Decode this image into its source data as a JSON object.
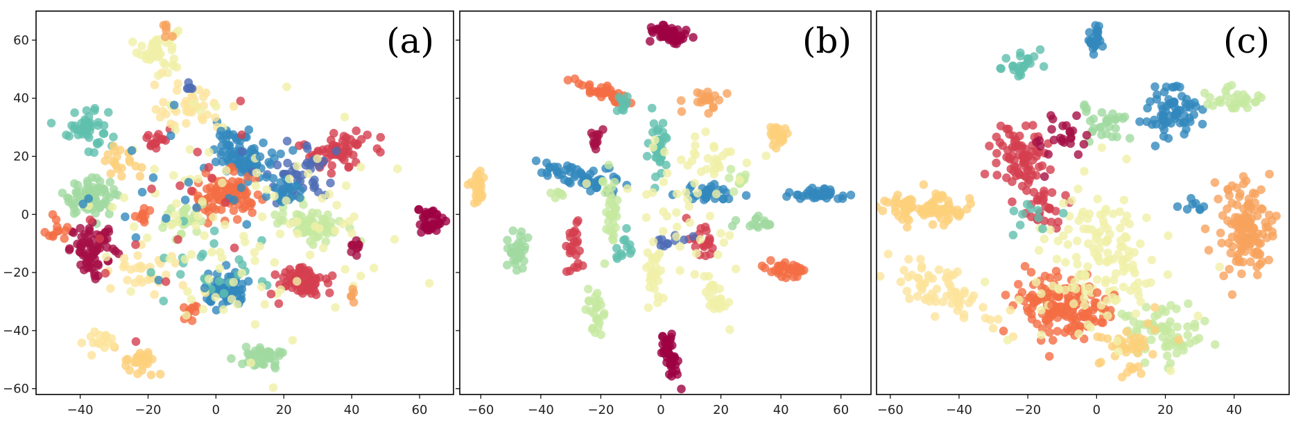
{
  "chart_data": [
    {
      "type": "scatter",
      "annotation": "(a)",
      "xlim": [
        -53,
        70
      ],
      "ylim": [
        -62,
        70
      ],
      "xticks": [
        -40,
        -20,
        0,
        20,
        40,
        60
      ],
      "yticks": [
        -60,
        -40,
        -20,
        0,
        20,
        40,
        60
      ],
      "show_yticklabels": true,
      "clusters": [
        {
          "c": "#f0f0a8",
          "x": -17,
          "y": 57,
          "sx": 3,
          "sy": 4,
          "n": 40
        },
        {
          "c": "#f7a35c",
          "x": -15,
          "y": 64,
          "sx": 1.5,
          "sy": 1,
          "n": 6
        },
        {
          "c": "#5fbfae",
          "x": -38,
          "y": 30,
          "sx": 3,
          "sy": 4,
          "n": 45
        },
        {
          "c": "#a0d9a0",
          "x": -37,
          "y": 6,
          "sx": 4,
          "sy": 3,
          "n": 70
        },
        {
          "c": "#a50f45",
          "x": -36,
          "y": -12,
          "sx": 3.5,
          "sy": 4,
          "n": 70
        },
        {
          "c": "#f46d43",
          "x": -47,
          "y": -6,
          "sx": 2,
          "sy": 2,
          "n": 12
        },
        {
          "c": "#fdd07a",
          "x": -28,
          "y": 18,
          "sx": 3,
          "sy": 3,
          "n": 20
        },
        {
          "c": "#d53e4f",
          "x": -17,
          "y": 25,
          "sx": 2,
          "sy": 2,
          "n": 15
        },
        {
          "c": "#3288bd",
          "x": 8,
          "y": 21,
          "sx": 4,
          "sy": 4,
          "n": 80
        },
        {
          "c": "#f46d43",
          "x": 3,
          "y": 6,
          "sx": 5,
          "sy": 4,
          "n": 90
        },
        {
          "c": "#d53e4f",
          "x": 35,
          "y": 22,
          "sx": 5,
          "sy": 4,
          "n": 60
        },
        {
          "c": "#4e6bb5",
          "x": 25,
          "y": 15,
          "sx": 6,
          "sy": 5,
          "n": 40
        },
        {
          "c": "#c5e8a0",
          "x": 28,
          "y": -3,
          "sx": 5,
          "sy": 3,
          "n": 60
        },
        {
          "c": "#9e0142",
          "x": 63,
          "y": -2,
          "sx": 1.8,
          "sy": 2.5,
          "n": 40
        },
        {
          "c": "#a50f45",
          "x": 41,
          "y": -11,
          "sx": 1,
          "sy": 1.5,
          "n": 10
        },
        {
          "c": "#d53e4f",
          "x": 26,
          "y": -23,
          "sx": 4,
          "sy": 3,
          "n": 60
        },
        {
          "c": "#3288bd",
          "x": 3,
          "y": -27,
          "sx": 3,
          "sy": 3,
          "n": 60
        },
        {
          "c": "#f46d43",
          "x": -8,
          "y": -34,
          "sx": 1.5,
          "sy": 1.5,
          "n": 10
        },
        {
          "c": "#a0d9a0",
          "x": 14,
          "y": -49,
          "sx": 3,
          "sy": 2,
          "n": 40
        },
        {
          "c": "#fdd07a",
          "x": -22,
          "y": -51,
          "sx": 2.5,
          "sy": 2,
          "n": 30
        },
        {
          "c": "#fde39b",
          "x": -34,
          "y": -44,
          "sx": 2,
          "sy": 1.5,
          "n": 15
        },
        {
          "c": "#fde39b",
          "x": -8,
          "y": 37,
          "sx": 5,
          "sy": 4,
          "n": 40
        },
        {
          "c": "#4e6bb5",
          "x": -7,
          "y": 44,
          "sx": 1.5,
          "sy": 1,
          "n": 6
        },
        {
          "c": "#f46d43",
          "x": -21,
          "y": -1,
          "sx": 1.5,
          "sy": 2,
          "n": 10
        },
        {
          "c": "#c5e8a0",
          "x": -10,
          "y": -2,
          "sx": 4,
          "sy": 3,
          "n": 25
        },
        {
          "c": "#fde39b",
          "x": -20,
          "y": -20,
          "sx": 5,
          "sy": 4,
          "n": 30
        },
        {
          "c": "#3288bd",
          "x": 20,
          "y": 8,
          "sx": 3,
          "sy": 2,
          "n": 25
        },
        {
          "c": "#5fbfae",
          "x": 0,
          "y": -18,
          "sx": 8,
          "sy": 6,
          "n": 25
        },
        {
          "c": "#f0f0a8",
          "x": 10,
          "y": 0,
          "sx": 25,
          "sy": 25,
          "n": 110
        },
        {
          "c": "#3288bd",
          "x": -5,
          "y": 8,
          "sx": 15,
          "sy": 15,
          "n": 25
        },
        {
          "c": "#d53e4f",
          "x": -8,
          "y": 0,
          "sx": 20,
          "sy": 20,
          "n": 20
        },
        {
          "c": "#f7a35c",
          "x": 40,
          "y": -28,
          "sx": 1,
          "sy": 1,
          "n": 5
        }
      ]
    },
    {
      "type": "scatter",
      "annotation": "(b)",
      "xlim": [
        -67,
        70
      ],
      "ylim": [
        -62,
        70
      ],
      "xticks": [
        -60,
        -40,
        -20,
        0,
        20,
        40,
        60
      ],
      "yticks": [
        -60,
        -40,
        -20,
        0,
        20,
        40,
        60
      ],
      "show_yticklabels": false,
      "clusters": [
        {
          "c": "#9e0142",
          "x": 3,
          "y": 62,
          "sx": 3,
          "sy": 1.5,
          "n": 50,
          "rot": -20
        },
        {
          "c": "#f46d43",
          "x": -19,
          "y": 42,
          "sx": 5,
          "sy": 1.2,
          "n": 40,
          "rot": -25
        },
        {
          "c": "#f7a35c",
          "x": 15,
          "y": 40,
          "sx": 2.5,
          "sy": 2,
          "n": 20
        },
        {
          "c": "#fdd07a",
          "x": 39,
          "y": 27,
          "sx": 2,
          "sy": 2,
          "n": 25
        },
        {
          "c": "#3288bd",
          "x": -27,
          "y": 13,
          "sx": 7,
          "sy": 2,
          "n": 60,
          "rot": -15
        },
        {
          "c": "#3288bd",
          "x": 53,
          "y": 7,
          "sx": 5,
          "sy": 1,
          "n": 40
        },
        {
          "c": "#3288bd",
          "x": 15,
          "y": 7,
          "sx": 5,
          "sy": 2,
          "n": 30
        },
        {
          "c": "#fdd07a",
          "x": -61,
          "y": 9,
          "sx": 2,
          "sy": 3,
          "n": 25
        },
        {
          "c": "#a0d9a0",
          "x": -48,
          "y": -12,
          "sx": 1.5,
          "sy": 4,
          "n": 30
        },
        {
          "c": "#a0d9a0",
          "x": 33,
          "y": -3,
          "sx": 3,
          "sy": 1,
          "n": 15
        },
        {
          "c": "#f46d43",
          "x": 42,
          "y": -19,
          "sx": 4,
          "sy": 1.5,
          "n": 35,
          "rot": -15
        },
        {
          "c": "#d53e4f",
          "x": -29,
          "y": -11,
          "sx": 1.5,
          "sy": 3.5,
          "n": 25
        },
        {
          "c": "#d53e4f",
          "x": 14,
          "y": -9,
          "sx": 2,
          "sy": 3,
          "n": 20,
          "rot": 30
        },
        {
          "c": "#f0f0a8",
          "x": 18,
          "y": -28,
          "sx": 1.5,
          "sy": 4,
          "n": 25,
          "rot": 20
        },
        {
          "c": "#c5e8a0",
          "x": -22,
          "y": -33,
          "sx": 1.5,
          "sy": 4,
          "n": 25
        },
        {
          "c": "#f0f0a8",
          "x": -3,
          "y": -22,
          "sx": 1.5,
          "sy": 5,
          "n": 25
        },
        {
          "c": "#c5e8a0",
          "x": -17,
          "y": 2,
          "sx": 1.5,
          "sy": 6,
          "n": 35
        },
        {
          "c": "#5fbfae",
          "x": -1,
          "y": 22,
          "sx": 1.5,
          "sy": 6,
          "n": 35
        },
        {
          "c": "#9e0142",
          "x": 3,
          "y": -49,
          "sx": 1.2,
          "sy": 4,
          "n": 40,
          "rot": 15
        },
        {
          "c": "#5fbfae",
          "x": -12,
          "y": 38,
          "sx": 2,
          "sy": 1.5,
          "n": 10
        },
        {
          "c": "#a50f45",
          "x": -22,
          "y": 25,
          "sx": 1,
          "sy": 2,
          "n": 12
        },
        {
          "c": "#f0f0a8",
          "x": 18,
          "y": 18,
          "sx": 4,
          "sy": 4,
          "n": 20
        },
        {
          "c": "#c5e8a0",
          "x": 27,
          "y": 12,
          "sx": 2,
          "sy": 2,
          "n": 10
        },
        {
          "c": "#5fbfae",
          "x": -12,
          "y": -12,
          "sx": 2,
          "sy": 3,
          "n": 12
        },
        {
          "c": "#4e6bb5",
          "x": 2,
          "y": -9,
          "sx": 3,
          "sy": 1.5,
          "n": 10
        },
        {
          "c": "#f0f0a8",
          "x": 5,
          "y": 5,
          "sx": 12,
          "sy": 12,
          "n": 45
        },
        {
          "c": "#c5e8a0",
          "x": -35,
          "y": 7,
          "sx": 2,
          "sy": 1,
          "n": 6
        }
      ]
    },
    {
      "type": "scatter",
      "annotation": "(c)",
      "xlim": [
        -64,
        56
      ],
      "ylim": [
        -58,
        70
      ],
      "xticks": [
        -60,
        -40,
        -20,
        0,
        20,
        40
      ],
      "yticks": [],
      "show_yticklabels": false,
      "clusters": [
        {
          "c": "#3288bd",
          "x": 0,
          "y": 61,
          "sx": 1.5,
          "sy": 3,
          "n": 25
        },
        {
          "c": "#5fbfae",
          "x": -22,
          "y": 52,
          "sx": 3,
          "sy": 2,
          "n": 25
        },
        {
          "c": "#3288bd",
          "x": 22,
          "y": 36,
          "sx": 4,
          "sy": 5,
          "n": 70
        },
        {
          "c": "#c5e8a0",
          "x": 40,
          "y": 40,
          "sx": 4,
          "sy": 2,
          "n": 30
        },
        {
          "c": "#a0d9a0",
          "x": 2,
          "y": 33,
          "sx": 4,
          "sy": 3,
          "n": 30
        },
        {
          "c": "#d53e4f",
          "x": -22,
          "y": 20,
          "sx": 4,
          "sy": 6,
          "n": 80
        },
        {
          "c": "#a50f45",
          "x": -10,
          "y": 28,
          "sx": 5,
          "sy": 4,
          "n": 25
        },
        {
          "c": "#d53e4f",
          "x": -14,
          "y": 4,
          "sx": 3,
          "sy": 4,
          "n": 25
        },
        {
          "c": "#fdd07a",
          "x": -50,
          "y": 4,
          "sx": 6,
          "sy": 2.5,
          "n": 90
        },
        {
          "c": "#f7a35c",
          "x": 43,
          "y": -3,
          "sx": 4,
          "sy": 8,
          "n": 130
        },
        {
          "c": "#f46d43",
          "x": -13,
          "y": -28,
          "sx": 6,
          "sy": 5,
          "n": 130
        },
        {
          "c": "#fde39b",
          "x": -45,
          "y": -24,
          "sx": 9,
          "sy": 3.5,
          "n": 70,
          "rot": -30
        },
        {
          "c": "#f0f0a8",
          "x": 3,
          "y": -10,
          "sx": 8,
          "sy": 13,
          "n": 110
        },
        {
          "c": "#c5e8a0",
          "x": 20,
          "y": -37,
          "sx": 6,
          "sy": 5,
          "n": 70
        },
        {
          "c": "#fdd07a",
          "x": 10,
          "y": -42,
          "sx": 5,
          "sy": 4,
          "n": 40
        },
        {
          "c": "#f46d43",
          "x": -2,
          "y": -30,
          "sx": 5,
          "sy": 4,
          "n": 25
        },
        {
          "c": "#3288bd",
          "x": 27,
          "y": 5,
          "sx": 2,
          "sy": 1,
          "n": 8
        },
        {
          "c": "#5fbfae",
          "x": -18,
          "y": 2,
          "sx": 4,
          "sy": 4,
          "n": 10
        },
        {
          "c": "#f0f0a8",
          "x": -5,
          "y": -25,
          "sx": 12,
          "sy": 8,
          "n": 40
        }
      ]
    }
  ]
}
